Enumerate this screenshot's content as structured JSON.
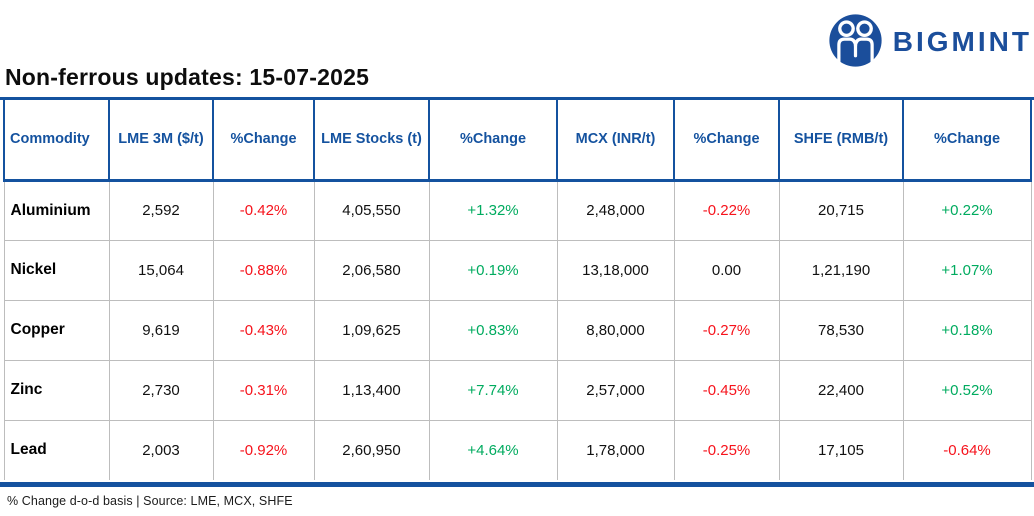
{
  "brand": {
    "name": "BIGMINT"
  },
  "title": "Non-ferrous updates: 15-07-2025",
  "table": {
    "columns": [
      "Commodity",
      "LME 3M ($/t)",
      "%Change",
      "LME Stocks (t)",
      "%Change",
      "MCX (INR/t)",
      "%Change",
      "SHFE (RMB/t)",
      "%Change"
    ],
    "rows": [
      [
        "Aluminium",
        "2,592",
        "-0.42%",
        "4,05,550",
        "+1.32%",
        "2,48,000",
        "-0.22%",
        "20,715",
        "+0.22%"
      ],
      [
        "Nickel",
        "15,064",
        "-0.88%",
        "2,06,580",
        "+0.19%",
        "13,18,000",
        "0.00",
        "1,21,190",
        "+1.07%"
      ],
      [
        "Copper",
        "9,619",
        "-0.43%",
        "1,09,625",
        "+0.83%",
        "8,80,000",
        "-0.27%",
        "78,530",
        "+0.18%"
      ],
      [
        "Zinc",
        "2,730",
        "-0.31%",
        "1,13,400",
        "+7.74%",
        "2,57,000",
        "-0.45%",
        "22,400",
        "+0.52%"
      ],
      [
        "Lead",
        "2,003",
        "-0.92%",
        "2,60,950",
        "+4.64%",
        "1,78,000",
        "-0.25%",
        "17,105",
        "-0.64%"
      ]
    ]
  },
  "footer": {
    "note": "% Change d-o-d basis | Source: LME, MCX, SHFE"
  },
  "colors": {
    "accent_blue": "#14529f",
    "logo_blue": "#1b4e9b",
    "negative_red": "#f6131c",
    "positive_green": "#00ab5f",
    "row_border_gray": "#bdbdbd"
  }
}
